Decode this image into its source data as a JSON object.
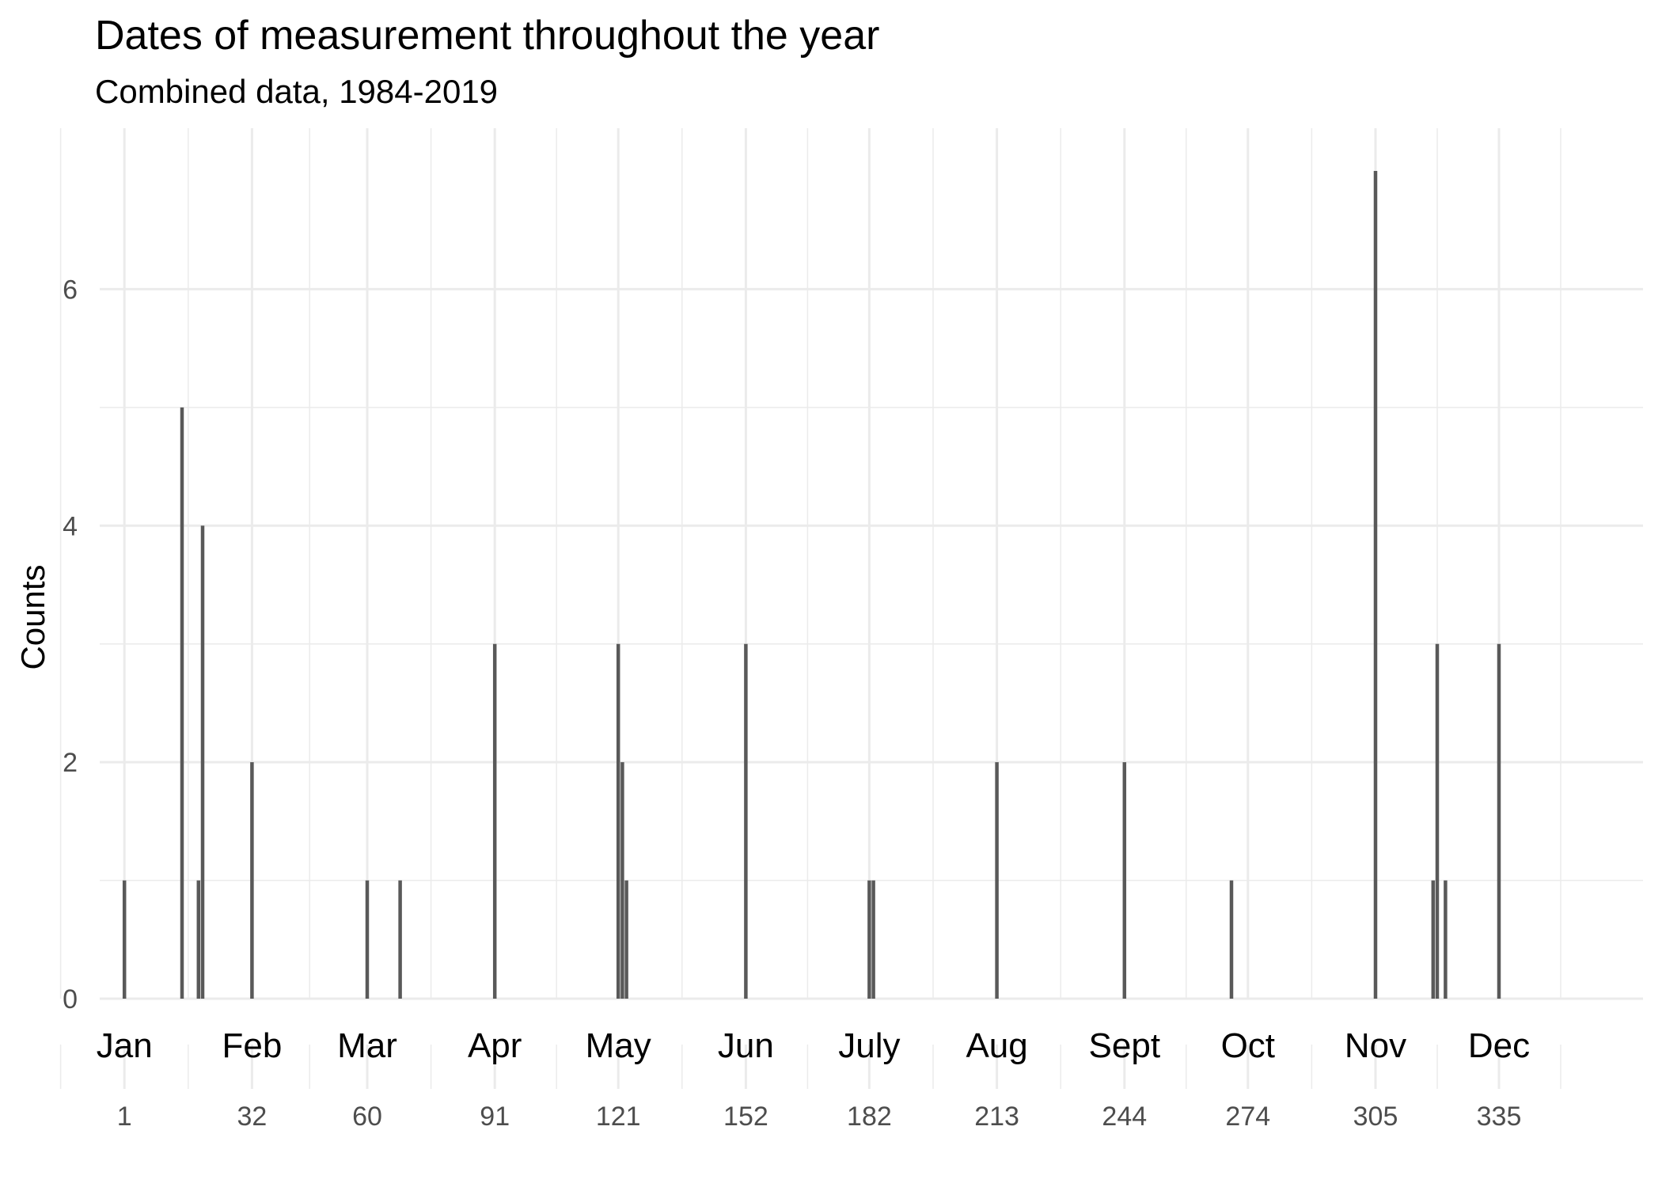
{
  "chart_data": {
    "type": "bar",
    "title": "Dates of measurement throughout the year",
    "subtitle": "Combined data, 1984-2019",
    "xlabel": "",
    "ylabel": "Counts",
    "xlim": [
      -5,
      370
    ],
    "ylim": [
      0,
      7.3
    ],
    "grid": true,
    "y_ticks": [
      0,
      2,
      4,
      6
    ],
    "x_ticks": [
      1,
      32,
      60,
      91,
      121,
      152,
      182,
      213,
      244,
      274,
      305,
      335
    ],
    "month_labels": [
      {
        "day": 1,
        "label": "Jan"
      },
      {
        "day": 32,
        "label": "Feb"
      },
      {
        "day": 60,
        "label": "Mar"
      },
      {
        "day": 91,
        "label": "Apr"
      },
      {
        "day": 121,
        "label": "May"
      },
      {
        "day": 152,
        "label": "Jun"
      },
      {
        "day": 182,
        "label": "July"
      },
      {
        "day": 213,
        "label": "Aug"
      },
      {
        "day": 244,
        "label": "Sept"
      },
      {
        "day": 274,
        "label": "Oct"
      },
      {
        "day": 305,
        "label": "Nov"
      },
      {
        "day": 335,
        "label": "Dec"
      }
    ],
    "bars": [
      {
        "day": 1,
        "count": 1
      },
      {
        "day": 15,
        "count": 5
      },
      {
        "day": 19,
        "count": 1
      },
      {
        "day": 20,
        "count": 4
      },
      {
        "day": 32,
        "count": 2
      },
      {
        "day": 60,
        "count": 1
      },
      {
        "day": 68,
        "count": 1
      },
      {
        "day": 91,
        "count": 3
      },
      {
        "day": 121,
        "count": 3
      },
      {
        "day": 122,
        "count": 2
      },
      {
        "day": 123,
        "count": 1
      },
      {
        "day": 152,
        "count": 3
      },
      {
        "day": 182,
        "count": 1
      },
      {
        "day": 183,
        "count": 1
      },
      {
        "day": 213,
        "count": 2
      },
      {
        "day": 244,
        "count": 2
      },
      {
        "day": 270,
        "count": 1
      },
      {
        "day": 305,
        "count": 7
      },
      {
        "day": 319,
        "count": 1
      },
      {
        "day": 320,
        "count": 3
      },
      {
        "day": 322,
        "count": 1
      },
      {
        "day": 335,
        "count": 3
      }
    ],
    "bar_color": "#595959",
    "grid_color": "#ebebeb"
  }
}
